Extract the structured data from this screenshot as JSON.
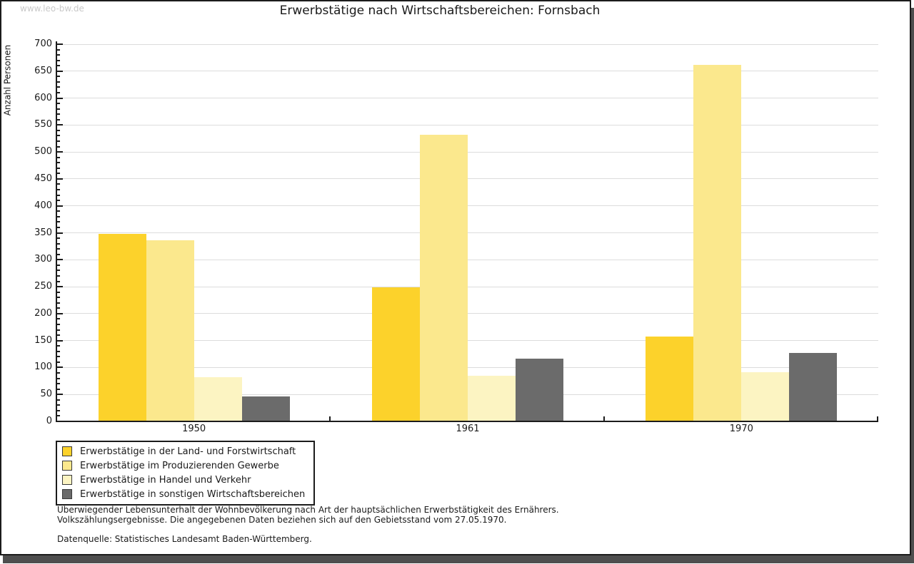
{
  "watermark": "www.leo-bw.de",
  "chart_data": {
    "type": "bar",
    "title": "Erwerbstätige nach Wirtschaftsbereichen: Fornsbach",
    "ylabel": "Anzahl Personen",
    "xlabel": "",
    "categories": [
      "1950",
      "1961",
      "1970"
    ],
    "series": [
      {
        "name": "Erwerbstätige in der Land- und Forstwirtschaft",
        "color": "#FCD22B",
        "values": [
          347,
          247,
          156
        ]
      },
      {
        "name": "Erwerbstätige im Produzierenden Gewerbe",
        "color": "#FBE88D",
        "values": [
          335,
          531,
          660
        ]
      },
      {
        "name": "Erwerbstätige in Handel und Verkehr",
        "color": "#FCF4C2",
        "values": [
          81,
          84,
          90
        ]
      },
      {
        "name": "Erwerbstätige in sonstigen Wirtschaftsbereichen",
        "color": "#6B6B6B",
        "values": [
          45,
          115,
          126
        ]
      }
    ],
    "ylim": [
      0,
      700
    ],
    "ytick_major": 50,
    "ytick_minor": 10,
    "grid": true,
    "legend_position": "bottom-left"
  },
  "footnotes": {
    "line1": "Überwiegender Lebensunterhalt der Wohnbevölkerung nach Art der hauptsächlichen Erwerbstätigkeit des Ernährers.",
    "line2": "Volkszählungsergebnisse. Die angegebenen Daten beziehen sich auf den Gebietsstand vom 27.05.1970.",
    "source": "Datenquelle: Statistisches Landesamt Baden-Württemberg."
  },
  "colors": {
    "background": "#FFFFFF",
    "axis": "#1B1B1B",
    "grid": "#DCDCDC",
    "text": "#1A1A1A",
    "watermark": "#C9C9C9",
    "frame_border": "#1B1B1B",
    "frame_shadow": "#4E4E4E"
  }
}
